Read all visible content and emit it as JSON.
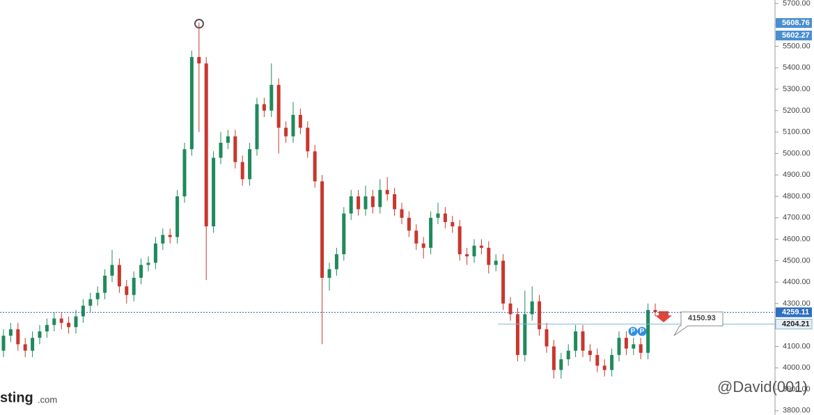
{
  "chart_data": {
    "type": "candlestick",
    "open": [
      4080,
      4150,
      4180,
      4110,
      4080,
      4140,
      4170,
      4200,
      4230,
      4210,
      4190,
      4240,
      4290,
      4320,
      4350,
      4430,
      4480,
      4380,
      4340,
      4420,
      4480,
      4490,
      4580,
      4620,
      4610,
      4800,
      5020,
      5450,
      5420,
      4660,
      4980,
      5050,
      5080,
      4960,
      4880,
      5020,
      5230,
      5200,
      5320,
      5120,
      5080,
      5180,
      5120,
      5010,
      4870,
      4420,
      4460,
      4530,
      4720,
      4800,
      4740,
      4800,
      4750,
      4830,
      4810,
      4740,
      4700,
      4640,
      4580,
      4560,
      4700,
      4720,
      4680,
      4660,
      4530,
      4520,
      4570,
      4560,
      4480,
      4500,
      4300,
      4250,
      4060,
      4250,
      4310,
      4180,
      4100,
      3990,
      4040,
      4080,
      4170,
      4080,
      4060,
      4010,
      3990,
      4060,
      4140,
      4090,
      4110,
      4070,
      4270
    ],
    "high": [
      4180,
      4210,
      4210,
      4140,
      4170,
      4200,
      4230,
      4260,
      4260,
      4240,
      4270,
      4320,
      4350,
      4380,
      4460,
      4550,
      4510,
      4410,
      4450,
      4510,
      4520,
      4610,
      4650,
      4650,
      4830,
      5050,
      5480,
      5610,
      5450,
      5010,
      5100,
      5110,
      5110,
      4990,
      5050,
      5260,
      5260,
      5420,
      5350,
      5150,
      5240,
      5210,
      5150,
      5040,
      4900,
      4490,
      4560,
      4750,
      4830,
      4830,
      4850,
      4830,
      4880,
      4890,
      4840,
      4770,
      4730,
      4670,
      4610,
      4730,
      4770,
      4750,
      4710,
      4690,
      4560,
      4600,
      4600,
      4590,
      4530,
      4530,
      4330,
      4280,
      4360,
      4380,
      4340,
      4210,
      4130,
      4070,
      4110,
      4200,
      4200,
      4110,
      4090,
      4040,
      4090,
      4170,
      4170,
      4140,
      4140,
      4300,
      4300
    ],
    "low": [
      4050,
      4120,
      4080,
      4050,
      4050,
      4110,
      4140,
      4170,
      4180,
      4160,
      4160,
      4210,
      4260,
      4290,
      4320,
      4400,
      4350,
      4300,
      4310,
      4390,
      4450,
      4460,
      4550,
      4580,
      4580,
      4770,
      4990,
      5100,
      4410,
      4630,
      4950,
      5020,
      4930,
      4850,
      4850,
      4990,
      5170,
      5170,
      5000,
      5050,
      5050,
      5090,
      4980,
      4840,
      4110,
      4360,
      4430,
      4500,
      4690,
      4710,
      4710,
      4720,
      4720,
      4780,
      4710,
      4670,
      4610,
      4550,
      4510,
      4530,
      4670,
      4650,
      4630,
      4500,
      4480,
      4490,
      4530,
      4440,
      4450,
      4270,
      4220,
      4030,
      4030,
      4220,
      4150,
      4070,
      3950,
      3950,
      4010,
      4050,
      4050,
      4030,
      3980,
      3960,
      3960,
      4030,
      4060,
      4060,
      4040,
      4040,
      4240
    ],
    "close": [
      4150,
      4180,
      4110,
      4080,
      4140,
      4170,
      4200,
      4230,
      4210,
      4190,
      4240,
      4290,
      4320,
      4350,
      4430,
      4480,
      4380,
      4340,
      4420,
      4480,
      4490,
      4580,
      4620,
      4610,
      4800,
      5020,
      5450,
      5420,
      4660,
      4980,
      5050,
      5080,
      4960,
      4880,
      5020,
      5230,
      5200,
      5320,
      5120,
      5080,
      5180,
      5120,
      5010,
      4870,
      4420,
      4460,
      4530,
      4720,
      4800,
      4740,
      4800,
      4750,
      4830,
      4810,
      4740,
      4700,
      4640,
      4580,
      4560,
      4700,
      4720,
      4680,
      4660,
      4530,
      4520,
      4570,
      4560,
      4480,
      4500,
      4300,
      4250,
      4060,
      4250,
      4310,
      4180,
      4100,
      3990,
      4040,
      4080,
      4170,
      4080,
      4060,
      4010,
      3990,
      4060,
      4140,
      4090,
      4110,
      4070,
      4270,
      4260
    ],
    "colors": {
      "up": "#1f8a5b",
      "down": "#c8372d"
    },
    "ylim": [
      3780,
      5716
    ],
    "yticks": [
      {
        "value": 3800,
        "label": "3800.00"
      },
      {
        "value": 3900,
        "label": "3900.00"
      },
      {
        "value": 4000,
        "label": "4000.00"
      },
      {
        "value": 4100,
        "label": "4100.00"
      },
      {
        "value": 4200,
        "label": "4200.00"
      },
      {
        "value": 4300,
        "label": "4300.00"
      },
      {
        "value": 4400,
        "label": "4400.00"
      },
      {
        "value": 4500,
        "label": "4500.00"
      },
      {
        "value": 4600,
        "label": "4600.00"
      },
      {
        "value": 4700,
        "label": "4700.00"
      },
      {
        "value": 4800,
        "label": "4800.00"
      },
      {
        "value": 4900,
        "label": "4900.00"
      },
      {
        "value": 5000,
        "label": "5000.00"
      },
      {
        "value": 5100,
        "label": "5100.00"
      },
      {
        "value": 5200,
        "label": "5200.00"
      },
      {
        "value": 5300,
        "label": "5300.00"
      },
      {
        "value": 5400,
        "label": "5400.00"
      },
      {
        "value": 5500,
        "label": "5500.00"
      },
      {
        "value": 5600,
        "label": "5600.00"
      },
      {
        "value": 5700,
        "label": "5700.00"
      }
    ],
    "price_lines": [
      4259.11,
      4204.21
    ],
    "price_labels": [
      5608.76,
      5602.27
    ],
    "annotation": 4150.93,
    "event_markers": [
      "P",
      "P"
    ],
    "logo_name": "sting",
    "logo_domain": ".com",
    "watermark": "@David(001)"
  }
}
